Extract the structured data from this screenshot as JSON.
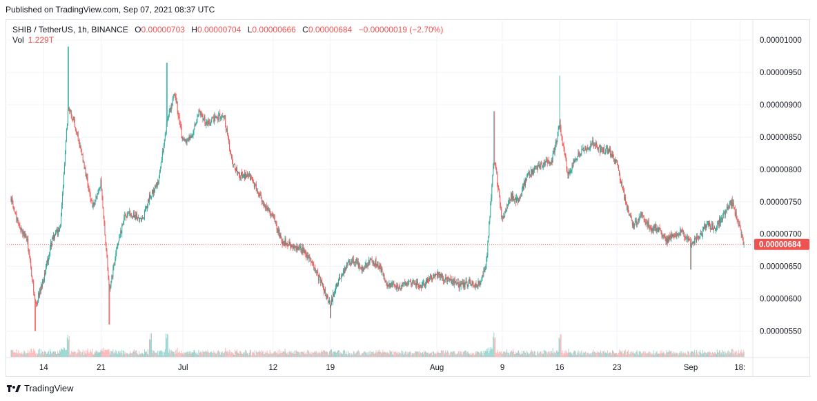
{
  "header": {
    "published": "Published on TradingView.com, Sep 07, 2021 08:37 UTC"
  },
  "legend": {
    "symbol": "SHIB / TetherUS, 1h, BINANCE",
    "o_label": "O",
    "o_value": "0.00000703",
    "h_label": "H",
    "h_value": "0.00000704",
    "l_label": "L",
    "l_value": "0.00000666",
    "c_label": "C",
    "c_value": "0.00000684",
    "change": "−0.00000019 (−2.70%)",
    "vol_label": "Vol",
    "vol_value": "1.229T"
  },
  "footer": {
    "brand": "TradingView",
    "logo_icon": "tradingview-logo-icon"
  },
  "colors": {
    "up": "#26a69a",
    "down": "#ef5350",
    "grid": "#f0f3fa",
    "last_price": "#ef5350"
  },
  "chart_data": {
    "type": "candlestick",
    "symbol": "SHIB / TetherUS",
    "interval": "1h",
    "exchange": "BINANCE",
    "ylim": [
      5.1e-06,
      1.03e-05
    ],
    "y_ticks": [
      "0.00001000",
      "0.00000950",
      "0.00000900",
      "0.00000850",
      "0.00000800",
      "0.00000750",
      "0.00000700",
      "0.00000650",
      "0.00000600",
      "0.00000550"
    ],
    "y_tick_values": [
      1e-05,
      9.5e-06,
      9e-06,
      8.5e-06,
      8e-06,
      7.5e-06,
      7e-06,
      6.5e-06,
      6e-06,
      5.5e-06
    ],
    "x_ticks": [
      {
        "label": "14",
        "day": 14
      },
      {
        "label": "21",
        "day": 21
      },
      {
        "label": "Jul",
        "day": 31
      },
      {
        "label": "12",
        "day": 42
      },
      {
        "label": "19",
        "day": 49
      },
      {
        "label": "Aug",
        "day": 62
      },
      {
        "label": "9",
        "day": 70
      },
      {
        "label": "16",
        "day": 77
      },
      {
        "label": "23",
        "day": 84
      },
      {
        "label": "Sep",
        "day": 93
      },
      {
        "label": "18:",
        "day": 99
      }
    ],
    "x_range_days": [
      9.5,
      100.5
    ],
    "last_price": "0.00000684",
    "last_price_value": 6.84e-06,
    "close_path": [
      [
        10,
        7.55
      ],
      [
        11,
        7.1
      ],
      [
        12,
        6.9
      ],
      [
        13,
        5.9
      ],
      [
        14,
        6.3
      ],
      [
        15,
        6.9
      ],
      [
        16,
        7.1
      ],
      [
        17,
        9.0
      ],
      [
        18,
        8.6
      ],
      [
        19,
        8.0
      ],
      [
        20,
        7.4
      ],
      [
        21,
        7.8
      ],
      [
        22,
        6.1
      ],
      [
        23,
        6.85
      ],
      [
        24,
        7.3
      ],
      [
        25,
        7.3
      ],
      [
        26,
        7.2
      ],
      [
        27,
        7.6
      ],
      [
        28,
        7.8
      ],
      [
        29,
        8.7
      ],
      [
        30,
        9.2
      ],
      [
        31,
        8.4
      ],
      [
        32,
        8.5
      ],
      [
        33,
        8.9
      ],
      [
        34,
        8.7
      ],
      [
        35,
        8.8
      ],
      [
        36,
        8.85
      ],
      [
        37,
        8.1
      ],
      [
        38,
        7.9
      ],
      [
        39,
        7.9
      ],
      [
        40,
        7.7
      ],
      [
        41,
        7.4
      ],
      [
        42,
        7.3
      ],
      [
        43,
        6.9
      ],
      [
        44,
        6.85
      ],
      [
        45,
        6.8
      ],
      [
        46,
        6.7
      ],
      [
        47,
        6.5
      ],
      [
        48,
        6.2
      ],
      [
        49,
        5.9
      ],
      [
        50,
        6.3
      ],
      [
        51,
        6.5
      ],
      [
        52,
        6.6
      ],
      [
        53,
        6.45
      ],
      [
        54,
        6.6
      ],
      [
        55,
        6.5
      ],
      [
        56,
        6.2
      ],
      [
        57,
        6.2
      ],
      [
        58,
        6.2
      ],
      [
        59,
        6.25
      ],
      [
        60,
        6.2
      ],
      [
        61,
        6.3
      ],
      [
        62,
        6.4
      ],
      [
        63,
        6.3
      ],
      [
        64,
        6.25
      ],
      [
        65,
        6.2
      ],
      [
        66,
        6.25
      ],
      [
        67,
        6.2
      ],
      [
        68,
        6.5
      ],
      [
        69,
        8.2
      ],
      [
        70,
        7.2
      ],
      [
        71,
        7.6
      ],
      [
        72,
        7.5
      ],
      [
        73,
        7.9
      ],
      [
        74,
        8.0
      ],
      [
        75,
        8.1
      ],
      [
        76,
        8.1
      ],
      [
        77,
        8.7
      ],
      [
        78,
        7.9
      ],
      [
        79,
        8.2
      ],
      [
        80,
        8.3
      ],
      [
        81,
        8.4
      ],
      [
        82,
        8.3
      ],
      [
        83,
        8.3
      ],
      [
        84,
        8.1
      ],
      [
        85,
        7.5
      ],
      [
        86,
        7.1
      ],
      [
        87,
        7.3
      ],
      [
        88,
        7.1
      ],
      [
        89,
        7.1
      ],
      [
        90,
        6.9
      ],
      [
        91,
        7.0
      ],
      [
        92,
        7.05
      ],
      [
        93,
        6.85
      ],
      [
        94,
        6.95
      ],
      [
        95,
        7.15
      ],
      [
        96,
        7.1
      ],
      [
        97,
        7.3
      ],
      [
        98,
        7.5
      ],
      [
        99,
        7.1
      ],
      [
        99.5,
        6.84
      ]
    ],
    "close_path_unit": "0.000001 USDT",
    "spikes": [
      {
        "day": 17,
        "high": 9.9
      },
      {
        "day": 29,
        "high": 9.65
      },
      {
        "day": 77,
        "high": 9.45
      },
      {
        "day": 69,
        "high": 8.9
      },
      {
        "day": 13,
        "low": 5.5
      },
      {
        "day": 22,
        "low": 5.6
      },
      {
        "day": 49,
        "low": 5.7
      },
      {
        "day": 93,
        "low": 6.45
      }
    ],
    "volume": {
      "last": "1.229T",
      "spikes": [
        {
          "day": 17
        },
        {
          "day": 27
        },
        {
          "day": 29
        },
        {
          "day": 69
        },
        {
          "day": 77
        }
      ]
    }
  }
}
